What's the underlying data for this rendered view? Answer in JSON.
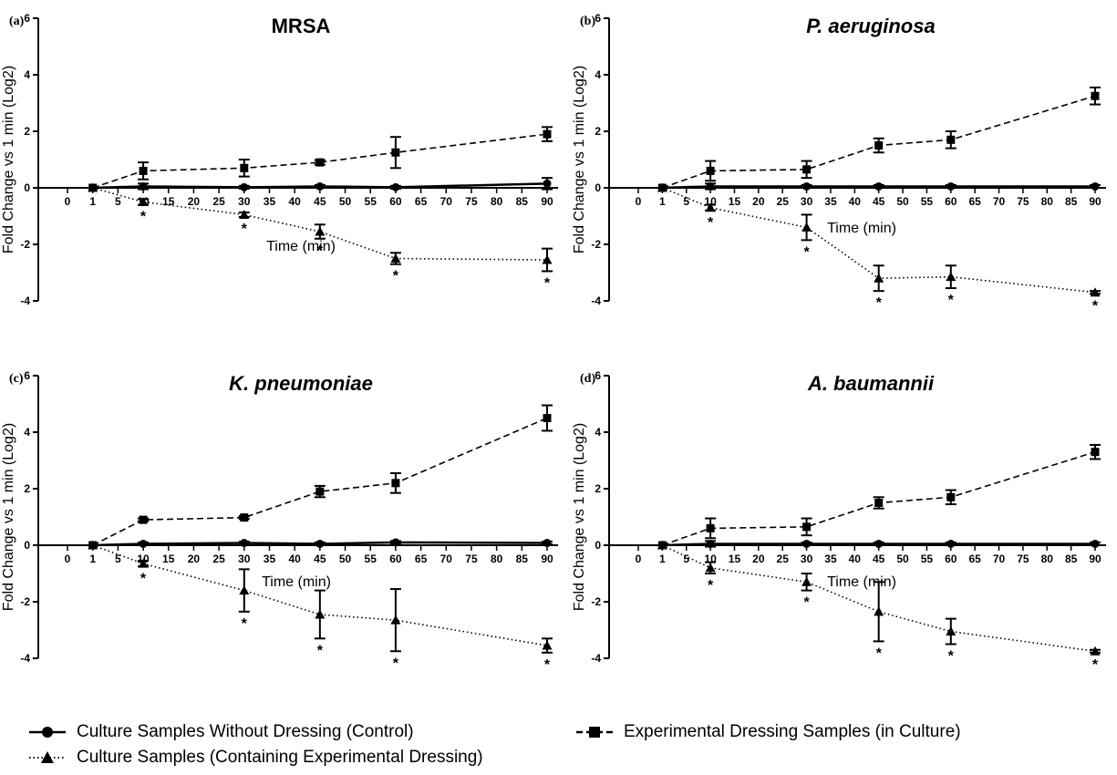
{
  "chart_data": [
    {
      "type": "line",
      "panel": "(a)",
      "title": "MRSA",
      "italic_title": false,
      "xlabel": "Time (min)",
      "ylabel": "Fold Change vs 1 min (Log2)",
      "ylim": [
        -4,
        6
      ],
      "yticks": [
        -4,
        -2,
        0,
        2,
        4,
        6
      ],
      "xticks": [
        0,
        1,
        5,
        10,
        15,
        20,
        25,
        30,
        35,
        40,
        45,
        50,
        55,
        60,
        65,
        70,
        75,
        80,
        85,
        90
      ],
      "x": [
        1,
        10,
        30,
        45,
        60,
        90
      ],
      "series": [
        {
          "name": "Culture Samples Without Dressing (Control)",
          "marker": "circle",
          "line": "solid",
          "values": [
            0,
            0.05,
            0.02,
            0.05,
            0.02,
            0.15
          ],
          "err": [
            0,
            0.1,
            0.05,
            0.05,
            0.05,
            0.2
          ]
        },
        {
          "name": "Experimental Dressing Samples (in Culture)",
          "marker": "square",
          "line": "dashed",
          "values": [
            0,
            0.6,
            0.7,
            0.9,
            1.25,
            1.9
          ],
          "err": [
            0,
            0.3,
            0.3,
            0.08,
            0.55,
            0.25
          ]
        },
        {
          "name": "Culture Samples (Containing Experimental Dressing)",
          "marker": "triangle",
          "line": "dotted",
          "values": [
            0,
            -0.5,
            -0.95,
            -1.55,
            -2.5,
            -2.55
          ],
          "err": [
            0,
            0.1,
            0.08,
            0.25,
            0.2,
            0.4
          ]
        }
      ],
      "asterisks": [
        10,
        30,
        45,
        60,
        90
      ]
    },
    {
      "type": "line",
      "panel": "(b)",
      "title": "P.  aeruginosa",
      "italic_title": true,
      "xlabel": "Time (min)",
      "ylabel": "Fold Change vs 1 min (Log2)",
      "ylim": [
        -4,
        6
      ],
      "yticks": [
        -4,
        -2,
        0,
        2,
        4,
        6
      ],
      "xticks": [
        0,
        1,
        5,
        10,
        15,
        20,
        25,
        30,
        35,
        40,
        45,
        50,
        55,
        60,
        65,
        70,
        75,
        80,
        85,
        90
      ],
      "x": [
        1,
        10,
        30,
        45,
        60,
        90
      ],
      "series": [
        {
          "name": "Culture Samples Without Dressing (Control)",
          "marker": "circle",
          "line": "solid",
          "values": [
            0,
            0.05,
            0.05,
            0.05,
            0.05,
            0.05
          ],
          "err": [
            0,
            0.1,
            0.05,
            0.05,
            0.05,
            0.05
          ]
        },
        {
          "name": "Experimental Dressing Samples (in Culture)",
          "marker": "square",
          "line": "dashed",
          "values": [
            0,
            0.6,
            0.65,
            1.5,
            1.7,
            3.25
          ],
          "err": [
            0,
            0.35,
            0.3,
            0.25,
            0.3,
            0.3
          ]
        },
        {
          "name": "Culture Samples (Containing Experimental Dressing)",
          "marker": "triangle",
          "line": "dotted",
          "values": [
            0,
            -0.7,
            -1.4,
            -3.2,
            -3.15,
            -3.7
          ],
          "err": [
            0,
            0.1,
            0.45,
            0.45,
            0.4,
            0.05
          ]
        }
      ],
      "asterisks": [
        10,
        30,
        45,
        60,
        90
      ]
    },
    {
      "type": "line",
      "panel": "(c)",
      "title": "K. pneumoniae",
      "italic_title": true,
      "xlabel": "Time (min)",
      "ylabel": "Fold Change vs 1 min (Log2)",
      "ylim": [
        -4,
        6
      ],
      "yticks": [
        -4,
        -2,
        0,
        2,
        4,
        6
      ],
      "xticks": [
        0,
        1,
        5,
        10,
        15,
        20,
        25,
        30,
        35,
        40,
        45,
        50,
        55,
        60,
        65,
        70,
        75,
        80,
        85,
        90
      ],
      "x": [
        1,
        10,
        30,
        45,
        60,
        90
      ],
      "series": [
        {
          "name": "Culture Samples Without Dressing (Control)",
          "marker": "circle",
          "line": "solid",
          "values": [
            0,
            0.05,
            0.08,
            0.05,
            0.1,
            0.08
          ],
          "err": [
            0,
            0.05,
            0.05,
            0.05,
            0.05,
            0.05
          ]
        },
        {
          "name": "Experimental Dressing Samples (in Culture)",
          "marker": "square",
          "line": "dashed",
          "values": [
            0,
            0.9,
            0.98,
            1.9,
            2.2,
            4.5
          ],
          "err": [
            0,
            0.05,
            0.05,
            0.2,
            0.35,
            0.45
          ]
        },
        {
          "name": "Culture Samples (Containing Experimental Dressing)",
          "marker": "triangle",
          "line": "dotted",
          "values": [
            0,
            -0.65,
            -1.6,
            -2.45,
            -2.65,
            -3.55
          ],
          "err": [
            0,
            0.1,
            0.75,
            0.85,
            1.1,
            0.25
          ]
        }
      ],
      "asterisks": [
        10,
        30,
        45,
        60,
        90
      ]
    },
    {
      "type": "line",
      "panel": "(d)",
      "title": "A. baumannii",
      "italic_title": true,
      "xlabel": "Time (min)",
      "ylabel": "Fold Change vs 1 min (Log2)",
      "ylim": [
        -4,
        6
      ],
      "yticks": [
        -4,
        -2,
        0,
        2,
        4,
        6
      ],
      "xticks": [
        0,
        1,
        5,
        10,
        15,
        20,
        25,
        30,
        35,
        40,
        45,
        50,
        55,
        60,
        65,
        70,
        75,
        80,
        85,
        90
      ],
      "x": [
        1,
        10,
        30,
        45,
        60,
        90
      ],
      "series": [
        {
          "name": "Culture Samples Without Dressing (Control)",
          "marker": "circle",
          "line": "solid",
          "values": [
            0,
            0.05,
            0.05,
            0.05,
            0.05,
            0.05
          ],
          "err": [
            0,
            0.1,
            0.05,
            0.05,
            0.05,
            0.05
          ]
        },
        {
          "name": "Experimental Dressing Samples (in Culture)",
          "marker": "square",
          "line": "dashed",
          "values": [
            0,
            0.6,
            0.65,
            1.5,
            1.7,
            3.3
          ],
          "err": [
            0,
            0.35,
            0.3,
            0.2,
            0.25,
            0.25
          ]
        },
        {
          "name": "Culture Samples (Containing Experimental Dressing)",
          "marker": "triangle",
          "line": "dotted",
          "values": [
            0,
            -0.8,
            -1.3,
            -2.35,
            -3.05,
            -3.75
          ],
          "err": [
            0,
            0.2,
            0.3,
            1.05,
            0.45,
            0.05
          ]
        }
      ],
      "asterisks": [
        10,
        30,
        45,
        60,
        90
      ]
    }
  ],
  "legend": {
    "items": [
      {
        "label": "Culture Samples Without Dressing (Control)",
        "marker": "circle",
        "line": "solid"
      },
      {
        "label": "Experimental Dressing Samples (in Culture)",
        "marker": "square",
        "line": "dashed"
      },
      {
        "label": "Culture Samples (Containing Experimental Dressing)",
        "marker": "triangle",
        "line": "dotted"
      }
    ]
  }
}
